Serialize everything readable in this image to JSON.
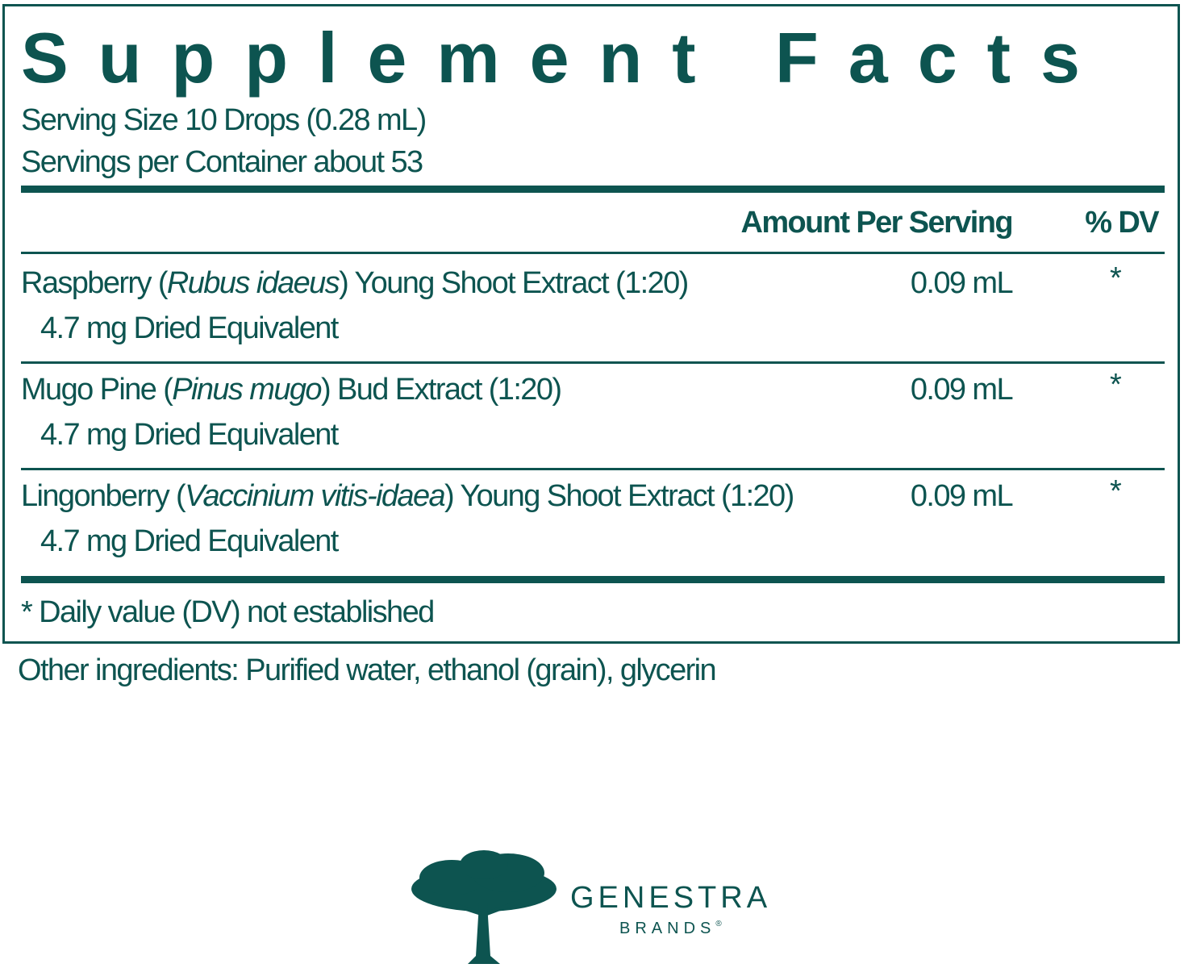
{
  "label": {
    "title": "Supplement Facts",
    "serving_size": "Serving Size 10 Drops (0.28 mL)",
    "servings_per_container": "Servings per Container about 53",
    "header": {
      "amount": "Amount Per Serving",
      "dv": "% DV"
    },
    "rows": [
      {
        "name_before": "Raspberry (",
        "name_italic": "Rubus idaeus",
        "name_after": ") Young Shoot Extract (1:20)",
        "sub": "4.7 mg Dried Equivalent",
        "amount": "0.09 mL",
        "dv": "*"
      },
      {
        "name_before": "Mugo Pine (",
        "name_italic": "Pinus mugo",
        "name_after": ") Bud Extract (1:20)",
        "sub": "4.7 mg Dried Equivalent",
        "amount": "0.09 mL",
        "dv": "*"
      },
      {
        "name_before": "Lingonberry (",
        "name_italic": "Vaccinium vitis-idaea",
        "name_after": ") Young Shoot Extract (1:20)",
        "sub": "4.7 mg Dried Equivalent",
        "amount": "0.09 mL",
        "dv": "*"
      }
    ],
    "footnote": "* Daily value (DV) not established"
  },
  "other_ingredients": "Other ingredients: Purified water, ethanol (grain), glycerin",
  "logo": {
    "brand": "GENESTRA",
    "sub": "BRANDS",
    "mark": "®"
  }
}
